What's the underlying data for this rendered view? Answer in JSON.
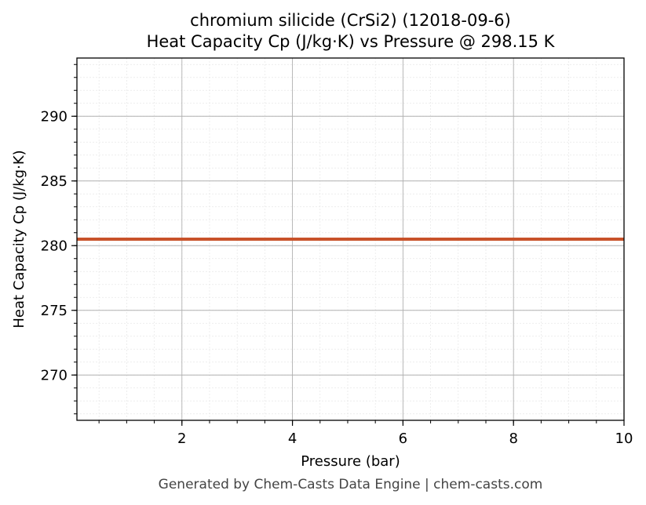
{
  "chart_data": {
    "type": "line",
    "title": "chromium silicide (CrSi2) (12018-09-6)",
    "subtitle": "Heat Capacity Cp (J/kg·K) vs Pressure @ 298.15 K",
    "xlabel": "Pressure (bar)",
    "ylabel": "Heat Capacity Cp (J/kg·K)",
    "xlim": [
      0.1,
      10
    ],
    "ylim": [
      266.5,
      294.5
    ],
    "xticks": [
      2,
      4,
      6,
      8,
      10
    ],
    "yticks": [
      270,
      275,
      280,
      285,
      290
    ],
    "grid": true,
    "series": [
      {
        "color": "#c8522a",
        "x": [
          0.1,
          1,
          2,
          3,
          4,
          5,
          6,
          7,
          8,
          9,
          10
        ],
        "y": [
          280.5,
          280.5,
          280.5,
          280.5,
          280.5,
          280.5,
          280.5,
          280.5,
          280.5,
          280.5,
          280.5
        ]
      }
    ]
  },
  "footer": "Generated by Chem-Casts Data Engine | chem-casts.com"
}
